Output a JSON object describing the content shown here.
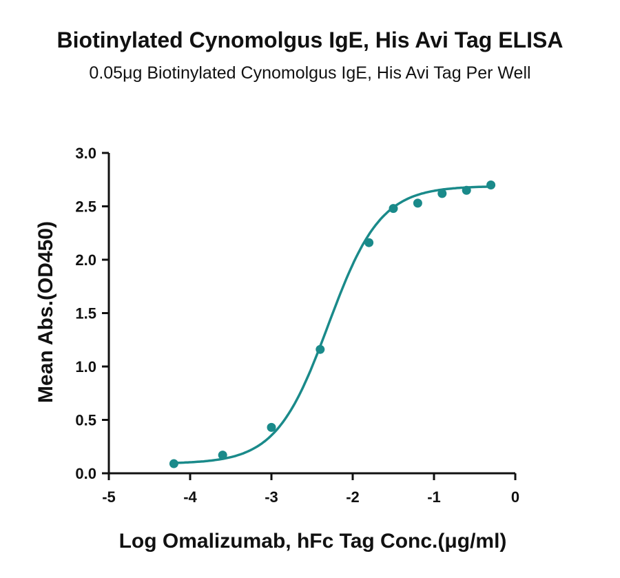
{
  "chart_data": {
    "type": "scatter",
    "title": "Biotinylated Cynomolgus IgE, His Avi Tag ELISA",
    "subtitle": "0.05μg Biotinylated Cynomolgus IgE, His Avi Tag Per Well",
    "xlabel": "Log Omalizumab, hFc Tag Conc.(μg/ml)",
    "ylabel": "Mean Abs.(OD450)",
    "xlim": [
      -5,
      0
    ],
    "ylim": [
      0,
      3.0
    ],
    "xticks": [
      "-5",
      "-4",
      "-3",
      "-2",
      "-1",
      "0"
    ],
    "yticks": [
      "0.0",
      "0.5",
      "1.0",
      "1.5",
      "2.0",
      "2.5",
      "3.0"
    ],
    "grid": false,
    "color": "#1a8a8a",
    "series": [
      {
        "x": [
          -4.2,
          -3.6,
          -3.0,
          -2.4,
          -1.8,
          -1.5,
          -1.2,
          -0.9,
          -0.6,
          -0.3
        ],
        "values": [
          0.09,
          0.17,
          0.43,
          1.16,
          2.16,
          2.48,
          2.53,
          2.62,
          2.65,
          2.7
        ]
      }
    ],
    "fit": {
      "model": "4PL",
      "bottom": 0.09,
      "top": 2.69,
      "log_ec50": -2.3,
      "hill_slope": 1.35,
      "x_range": [
        -4.2,
        -0.3
      ]
    }
  }
}
